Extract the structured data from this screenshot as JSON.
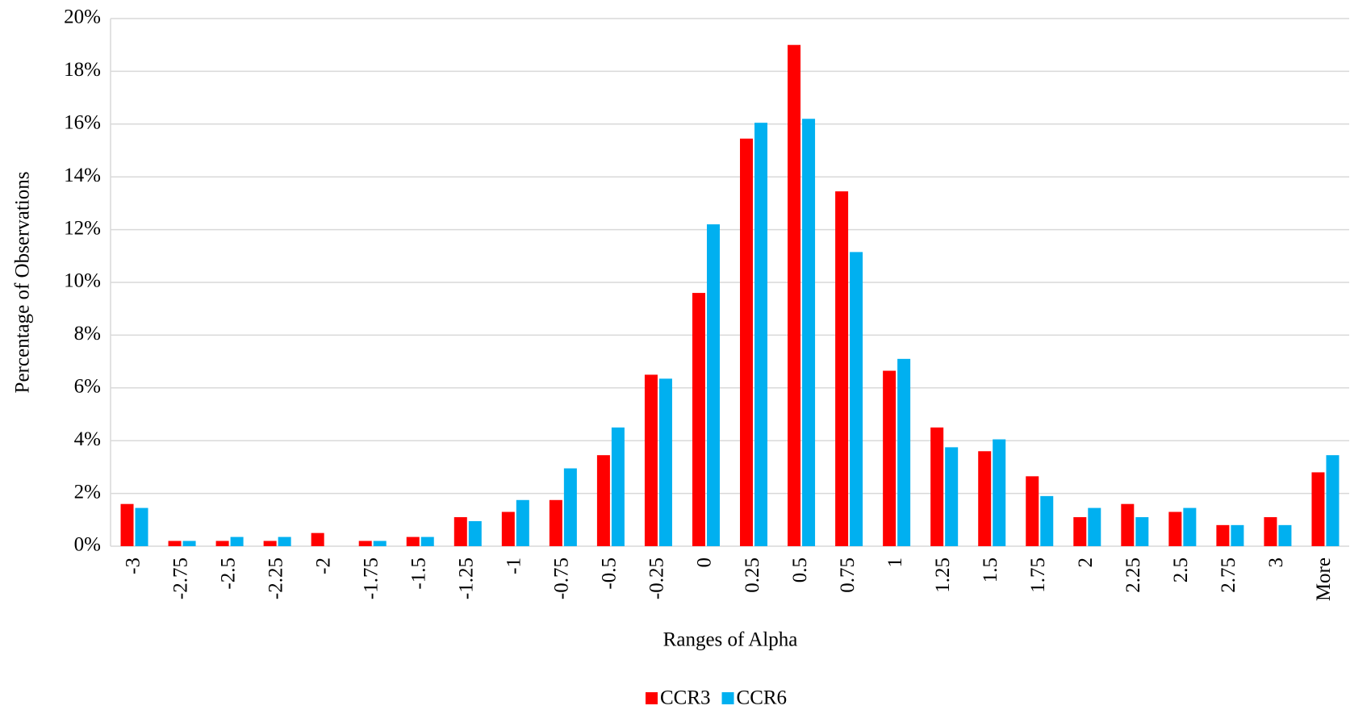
{
  "chart_data": {
    "type": "bar",
    "x_label": "Ranges of Alpha",
    "y_label": "Percentage of Observations",
    "categories": [
      "-3",
      "-2.75",
      "-2.5",
      "-2.25",
      "-2",
      "-1.75",
      "-1.5",
      "-1.25",
      "-1",
      "-0.75",
      "-0.5",
      "-0.25",
      "0",
      "0.25",
      "0.5",
      "0.75",
      "1",
      "1.25",
      "1.5",
      "1.75",
      "2",
      "2.25",
      "2.5",
      "2.75",
      "3",
      "More"
    ],
    "series": [
      {
        "name": "CCR3",
        "color": "#ff0000",
        "values": [
          1.6,
          0.2,
          0.2,
          0.2,
          0.5,
          0.2,
          0.35,
          1.1,
          1.3,
          1.75,
          3.45,
          6.5,
          9.6,
          15.45,
          19.0,
          13.45,
          6.65,
          4.5,
          3.6,
          2.65,
          1.1,
          1.6,
          1.3,
          0.8,
          1.1,
          2.8
        ]
      },
      {
        "name": "CCR6",
        "color": "#00b0f0",
        "values": [
          1.45,
          0.2,
          0.35,
          0.35,
          0,
          0.2,
          0.35,
          0.95,
          1.75,
          2.95,
          4.5,
          6.35,
          12.2,
          16.05,
          16.2,
          11.15,
          7.1,
          3.75,
          4.05,
          1.9,
          1.45,
          1.1,
          1.45,
          0.8,
          0.8,
          3.45
        ]
      }
    ],
    "ylim": [
      0,
      20
    ],
    "yticks": [
      {
        "value": 0,
        "label": "0%"
      },
      {
        "value": 2,
        "label": "2%"
      },
      {
        "value": 4,
        "label": "4%"
      },
      {
        "value": 6,
        "label": "6%"
      },
      {
        "value": 8,
        "label": "8%"
      },
      {
        "value": 10,
        "label": "10%"
      },
      {
        "value": 12,
        "label": "12%"
      },
      {
        "value": 14,
        "label": "14%"
      },
      {
        "value": 16,
        "label": "16%"
      },
      {
        "value": 18,
        "label": "18%"
      },
      {
        "value": 20,
        "label": "20%"
      }
    ],
    "grid": true,
    "legend": "bottom"
  }
}
